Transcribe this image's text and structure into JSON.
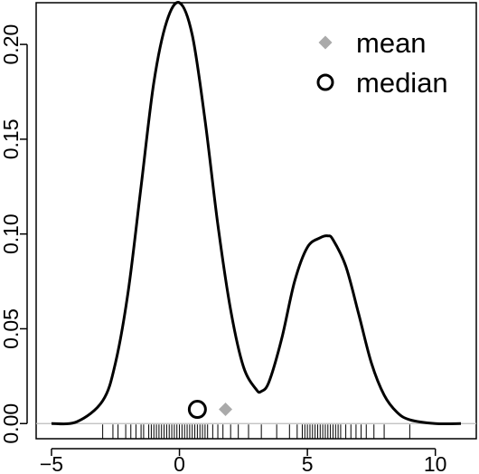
{
  "chart_data": {
    "type": "line",
    "title": "",
    "xlabel": "",
    "ylabel": "",
    "xlim": [
      -5.6,
      11.6
    ],
    "ylim": [
      -0.008,
      0.222
    ],
    "x_ticks": [
      -5,
      0,
      5,
      10
    ],
    "x_tick_labels": [
      "−5",
      "0",
      "5",
      "10"
    ],
    "y_ticks": [
      0.0,
      0.05,
      0.1,
      0.15,
      0.2
    ],
    "y_tick_labels": [
      "0.00",
      "0.05",
      "0.10",
      "0.15",
      "0.20"
    ],
    "grid": false,
    "series": [
      {
        "x": [
          -5.0,
          -4.0,
          -3.0,
          -2.5,
          -2.0,
          -1.5,
          -1.0,
          -0.5,
          0.0,
          0.5,
          1.0,
          1.5,
          2.0,
          2.5,
          3.0,
          3.2,
          3.5,
          4.0,
          4.5,
          5.0,
          5.5,
          5.8,
          6.0,
          6.5,
          7.0,
          7.5,
          8.0,
          8.5,
          9.0,
          10.0,
          11.0
        ],
        "y": [
          0.0,
          0.001,
          0.012,
          0.032,
          0.07,
          0.125,
          0.18,
          0.212,
          0.222,
          0.205,
          0.16,
          0.105,
          0.06,
          0.03,
          0.018,
          0.017,
          0.022,
          0.045,
          0.075,
          0.093,
          0.098,
          0.099,
          0.097,
          0.083,
          0.058,
          0.032,
          0.015,
          0.006,
          0.002,
          0.0,
          0.0
        ],
        "color": "#000000"
      }
    ],
    "points": [
      {
        "name": "median",
        "x": 0.7,
        "y": 0.0075,
        "marker": "circle",
        "color": "#000000"
      },
      {
        "name": "mean",
        "x": 1.8,
        "y": 0.0075,
        "marker": "diamond",
        "color": "#aaaaaa"
      }
    ],
    "rug": [
      -3.0,
      -2.6,
      -2.4,
      -2.1,
      -1.9,
      -1.7,
      -1.5,
      -1.4,
      -1.2,
      -1.1,
      -1.0,
      -0.9,
      -0.8,
      -0.7,
      -0.6,
      -0.5,
      -0.4,
      -0.3,
      -0.2,
      -0.1,
      0.0,
      0.1,
      0.2,
      0.3,
      0.4,
      0.5,
      0.6,
      0.7,
      0.8,
      0.9,
      1.0,
      1.1,
      1.3,
      1.5,
      1.7,
      2.0,
      2.3,
      2.7,
      3.2,
      3.8,
      4.3,
      4.6,
      4.8,
      4.9,
      5.0,
      5.1,
      5.2,
      5.3,
      5.4,
      5.5,
      5.6,
      5.7,
      5.8,
      5.9,
      6.0,
      6.1,
      6.2,
      6.3,
      6.5,
      6.7,
      6.9,
      7.1,
      7.3,
      7.6,
      8.0,
      9.0
    ],
    "legend": {
      "position": "top-right",
      "entries": [
        {
          "label": "mean",
          "marker": "diamond",
          "color": "#aaaaaa"
        },
        {
          "label": "median",
          "marker": "circle",
          "color": "#000000"
        }
      ]
    }
  }
}
